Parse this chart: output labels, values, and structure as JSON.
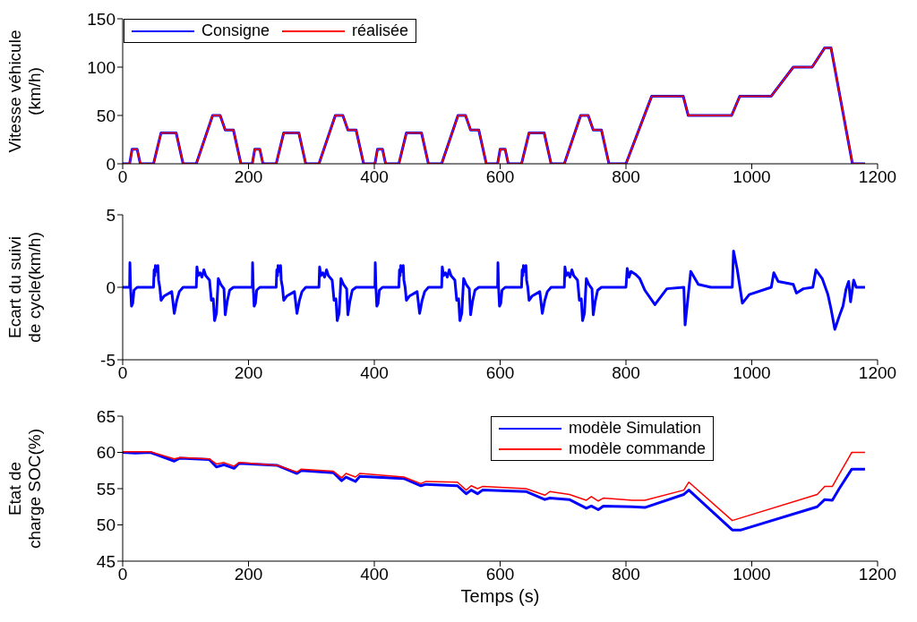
{
  "chart_data": [
    {
      "type": "line",
      "ylabel": "Vitesse véhicule\n(km/h)",
      "xlim": [
        0,
        1200
      ],
      "xticks": [
        0,
        200,
        400,
        600,
        800,
        1000,
        1200
      ],
      "ylim": [
        0,
        150
      ],
      "yticks": [
        0,
        50,
        100,
        150
      ],
      "legend": "top left",
      "series": [
        {
          "name": "Consigne",
          "color": "#0000ff",
          "x": [
            0,
            11,
            15,
            23,
            28,
            49,
            61,
            85,
            96,
            117,
            143,
            155,
            163,
            176,
            188,
            206,
            210,
            218,
            223,
            244,
            256,
            280,
            291,
            312,
            338,
            350,
            358,
            371,
            383,
            401,
            405,
            413,
            418,
            439,
            451,
            475,
            486,
            507,
            533,
            545,
            553,
            566,
            578,
            596,
            600,
            608,
            613,
            634,
            646,
            670,
            681,
            702,
            728,
            740,
            748,
            761,
            773,
            800,
            841,
            891,
            899,
            968,
            981,
            1031,
            1066,
            1096,
            1116,
            1126,
            1160,
            1180
          ],
          "values": [
            0,
            0,
            15,
            15,
            0,
            0,
            32,
            32,
            0,
            0,
            50,
            50,
            35,
            35,
            0,
            0,
            15,
            15,
            0,
            0,
            32,
            32,
            0,
            0,
            50,
            50,
            35,
            35,
            0,
            0,
            15,
            15,
            0,
            0,
            32,
            32,
            0,
            0,
            50,
            50,
            35,
            35,
            0,
            0,
            15,
            15,
            0,
            0,
            32,
            32,
            0,
            0,
            50,
            50,
            35,
            35,
            0,
            0,
            70,
            70,
            50,
            50,
            70,
            70,
            100,
            100,
            120,
            120,
            0,
            0
          ]
        },
        {
          "name": "réalisée",
          "color": "#ff0000",
          "x": [
            0,
            11,
            15,
            23,
            28,
            49,
            61,
            85,
            96,
            117,
            143,
            155,
            163,
            176,
            188,
            206,
            210,
            218,
            223,
            244,
            256,
            280,
            291,
            312,
            338,
            350,
            358,
            371,
            383,
            401,
            405,
            413,
            418,
            439,
            451,
            475,
            486,
            507,
            533,
            545,
            553,
            566,
            578,
            596,
            600,
            608,
            613,
            634,
            646,
            670,
            681,
            702,
            728,
            740,
            748,
            761,
            773,
            800,
            841,
            891,
            899,
            968,
            981,
            1031,
            1066,
            1096,
            1116,
            1126,
            1160,
            1180
          ],
          "values": [
            0,
            0,
            15,
            15,
            0,
            0,
            32,
            32,
            0,
            0,
            50,
            50,
            35,
            35,
            0,
            0,
            15,
            15,
            0,
            0,
            32,
            32,
            0,
            0,
            50,
            50,
            35,
            35,
            0,
            0,
            15,
            15,
            0,
            0,
            32,
            32,
            0,
            0,
            50,
            50,
            35,
            35,
            0,
            0,
            15,
            15,
            0,
            0,
            32,
            32,
            0,
            0,
            50,
            50,
            35,
            35,
            0,
            0,
            70,
            70,
            50,
            50,
            70,
            70,
            100,
            100,
            120,
            120,
            0,
            0
          ]
        }
      ]
    },
    {
      "type": "line",
      "ylabel": "Ecart du suivi\nde cycle(km/h)",
      "xlim": [
        0,
        1200
      ],
      "xticks": [
        0,
        200,
        400,
        600,
        800,
        1000,
        1200
      ],
      "ylim": [
        -5,
        5
      ],
      "yticks": [
        -5,
        0,
        5
      ],
      "series": [
        {
          "color": "#0000ff",
          "x": [
            0,
            11,
            11.5,
            12.5,
            14,
            16,
            18,
            23,
            49,
            50,
            51,
            52,
            54,
            56,
            57,
            59,
            61,
            66,
            78,
            82,
            86,
            90,
            96,
            117,
            118,
            120,
            123,
            126,
            129,
            132,
            138,
            141,
            144,
            146,
            149,
            152,
            156,
            161,
            163,
            166,
            170,
            176,
            195,
            206,
            206.5,
            207.5,
            209,
            211,
            213,
            218,
            244,
            245,
            246,
            247,
            249,
            251,
            252,
            254,
            256,
            261,
            273,
            277,
            281,
            285,
            291,
            312,
            313,
            315,
            318,
            321,
            324,
            327,
            333,
            336,
            339,
            341,
            344,
            347,
            351,
            356,
            358,
            361,
            365,
            371,
            390,
            401,
            401.5,
            402.5,
            404,
            406,
            408,
            413,
            439,
            440,
            441,
            442,
            444,
            446,
            447,
            449,
            451,
            456,
            468,
            472,
            476,
            480,
            486,
            507,
            508,
            510,
            513,
            516,
            519,
            522,
            528,
            531,
            534,
            536,
            539,
            542,
            546,
            551,
            553,
            556,
            560,
            566,
            585,
            596,
            596.5,
            597.5,
            599,
            601,
            603,
            608,
            634,
            635,
            636,
            637,
            639,
            641,
            642,
            644,
            646,
            651,
            663,
            667,
            671,
            675,
            681,
            702,
            703,
            705,
            708,
            711,
            714,
            717,
            723,
            726,
            729,
            731,
            734,
            737,
            741,
            746,
            748,
            751,
            755,
            761,
            780,
            800,
            802,
            805,
            808,
            815,
            822,
            830,
            846,
            865,
            892,
            894,
            903,
            915,
            935,
            969,
            971,
            977,
            985,
            996,
            1031,
            1035,
            1042,
            1066,
            1071,
            1082,
            1097,
            1102,
            1112,
            1121,
            1126,
            1132,
            1139,
            1145,
            1150,
            1154,
            1157,
            1162,
            1166,
            1180
          ],
          "values": [
            0,
            0,
            1.7,
            0,
            -1.3,
            -1.1,
            -0.2,
            0,
            0,
            1.2,
            0.8,
            1.5,
            1.1,
            1.5,
            0.5,
            0,
            -0.9,
            -0.6,
            -0.3,
            -1.8,
            -0.9,
            -0.3,
            0,
            0,
            1.4,
            0.8,
            1,
            0.7,
            1.2,
            0.8,
            0.5,
            -0.9,
            -0.8,
            -2.3,
            -1.8,
            0.6,
            0.2,
            -0.1,
            -1.9,
            -1,
            -0.2,
            0,
            0,
            0,
            1.7,
            0,
            -1.3,
            -1.1,
            -0.2,
            0,
            0,
            1.2,
            0.8,
            1.5,
            1.1,
            1.5,
            0.5,
            0,
            -0.9,
            -0.6,
            -0.3,
            -1.8,
            -0.9,
            -0.3,
            0,
            0,
            1.4,
            0.8,
            1,
            0.7,
            1.2,
            0.8,
            0.5,
            -0.9,
            -0.8,
            -2.3,
            -1.8,
            0.6,
            0.2,
            -0.1,
            -1.9,
            -1,
            -0.2,
            0,
            0,
            0,
            1.7,
            0,
            -1.3,
            -1.1,
            -0.2,
            0,
            0,
            1.2,
            0.8,
            1.5,
            1.1,
            1.5,
            0.5,
            0,
            -0.9,
            -0.6,
            -0.3,
            -1.8,
            -0.9,
            -0.3,
            0,
            0,
            1.4,
            0.8,
            1,
            0.7,
            1.2,
            0.8,
            0.5,
            -0.9,
            -0.8,
            -2.3,
            -1.8,
            0.6,
            0.2,
            -0.1,
            -1.9,
            -1,
            -0.2,
            0,
            0,
            0,
            1.7,
            0,
            -1.3,
            -1.1,
            -0.2,
            0,
            0,
            1.2,
            0.8,
            1.5,
            1.1,
            1.5,
            0.5,
            0,
            -0.9,
            -0.6,
            -0.3,
            -1.8,
            -0.9,
            -0.3,
            0,
            0,
            1.4,
            0.8,
            1,
            0.7,
            1.2,
            0.8,
            0.5,
            -0.9,
            -0.8,
            -2.3,
            -1.8,
            0.6,
            0.2,
            -0.1,
            -1.9,
            -1,
            -0.2,
            0,
            0,
            0,
            1.3,
            0.7,
            1.1,
            0.9,
            0.6,
            -0.2,
            -1.2,
            -0.1,
            0,
            -2.6,
            1.1,
            0.2,
            0,
            0,
            2.5,
            1.2,
            -1.1,
            -0.5,
            0,
            1,
            0.4,
            0.2,
            -0.4,
            -0.1,
            0,
            1.2,
            0.6,
            -0.5,
            -1.5,
            -2.9,
            -2,
            -1.3,
            -0.1,
            0.4,
            -1,
            0.5,
            0,
            0
          ]
        }
      ]
    },
    {
      "type": "line",
      "ylabel": "Etat de\ncharge SOC(%)",
      "xlabel": "Temps (s)",
      "xlim": [
        0,
        1200
      ],
      "xticks": [
        0,
        200,
        400,
        600,
        800,
        1000,
        1200
      ],
      "ylim": [
        45,
        65
      ],
      "yticks": [
        45,
        50,
        55,
        60,
        65
      ],
      "legend": "top right",
      "series": [
        {
          "name": "modèle Simulation",
          "color": "#0000ff",
          "x": [
            0,
            20,
            44,
            82,
            91,
            138,
            149,
            161,
            177,
            185,
            246,
            277,
            284,
            335,
            348,
            355,
            370,
            377,
            447,
            474,
            482,
            532,
            546,
            554,
            564,
            572,
            641,
            671,
            679,
            710,
            737,
            745,
            756,
            764,
            810,
            830,
            892,
            900,
            969,
            983,
            1104,
            1116,
            1128,
            1139,
            1159,
            1180
          ],
          "values": [
            60,
            59.9,
            60,
            58.8,
            59.2,
            59,
            58,
            58.3,
            57.8,
            58.5,
            58.2,
            57.1,
            57.5,
            57.2,
            56.1,
            56.6,
            56,
            56.7,
            56.4,
            55.4,
            55.6,
            55.4,
            54.3,
            54.8,
            54.3,
            54.8,
            54.6,
            53.5,
            53.7,
            53.5,
            52.3,
            52.6,
            52.1,
            52.6,
            52.5,
            52.4,
            54.2,
            54.8,
            49.3,
            49.3,
            52.5,
            53.5,
            53.4,
            55,
            57.7,
            57.7
          ]
        },
        {
          "name": "modèle commande",
          "color": "#ff0000",
          "x": [
            0,
            44,
            82,
            91,
            138,
            149,
            161,
            177,
            185,
            246,
            277,
            284,
            335,
            348,
            355,
            370,
            377,
            447,
            474,
            482,
            532,
            546,
            554,
            564,
            572,
            641,
            671,
            679,
            710,
            737,
            745,
            756,
            764,
            810,
            830,
            892,
            900,
            969,
            1104,
            1116,
            1128,
            1139,
            1159,
            1180
          ],
          "values": [
            60.1,
            60.1,
            59.1,
            59.3,
            59.1,
            58.4,
            58.6,
            58.1,
            58.6,
            58.2,
            57.3,
            57.7,
            57.4,
            56.5,
            57.1,
            56.6,
            57.1,
            56.6,
            55.7,
            56,
            55.9,
            54.8,
            55.4,
            55,
            55.3,
            55,
            54.1,
            54.6,
            54.2,
            53.4,
            53.9,
            53.3,
            53.7,
            53.4,
            53.4,
            54.8,
            55.9,
            50.6,
            54.2,
            55.3,
            55.3,
            57,
            60,
            60
          ]
        }
      ]
    }
  ]
}
